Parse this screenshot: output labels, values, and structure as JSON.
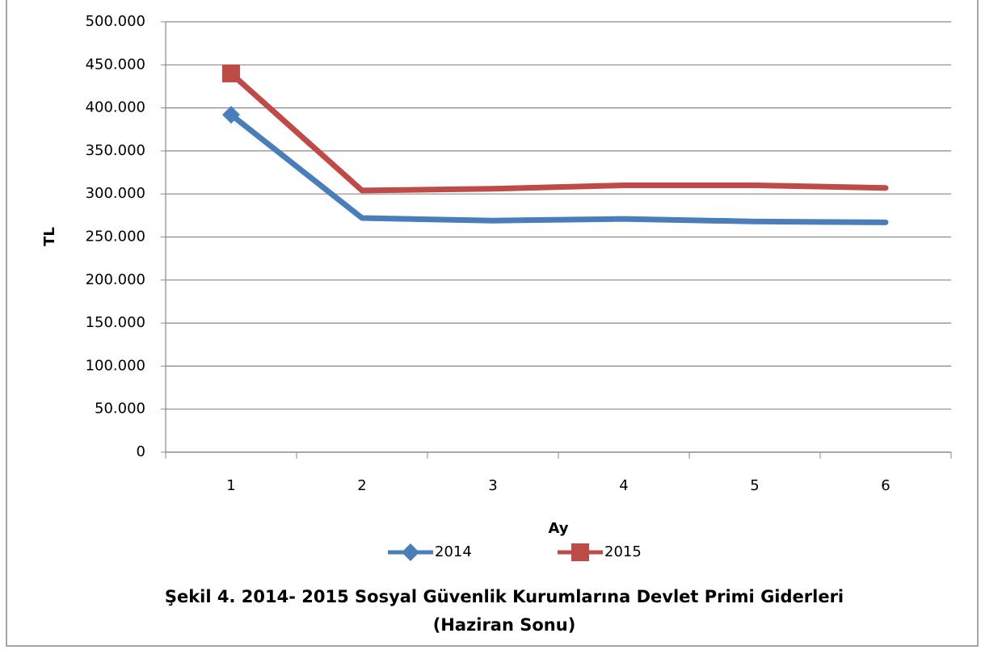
{
  "chart_data": {
    "type": "line",
    "title": "Şekil 4. 2014- 2015 Sosyal Güvenlik Kurumlarına Devlet Primi Giderleri",
    "subtitle": "(Haziran Sonu)",
    "x_label": "Ay",
    "y_label": "TL",
    "categories": [
      "1",
      "2",
      "3",
      "4",
      "5",
      "6"
    ],
    "series": [
      {
        "name": "2014",
        "color": "#4a7ebb",
        "marker": "diamond",
        "values": [
          392000,
          272000,
          269000,
          271000,
          268000,
          267000
        ]
      },
      {
        "name": "2015",
        "color": "#be4b48",
        "marker": "square",
        "values": [
          440000,
          304000,
          306000,
          310000,
          310000,
          307000
        ]
      }
    ],
    "ylim": [
      0,
      500000
    ],
    "yticks": [
      0,
      {
        "value": 50000,
        "label": "50.000"
      },
      {
        "value": 100000,
        "label": "100.000"
      },
      {
        "value": 150000,
        "label": "150.000"
      },
      {
        "value": 200000,
        "label": "200.000"
      },
      {
        "value": 250000,
        "label": "250.000"
      },
      {
        "value": 300000,
        "label": "300.000"
      },
      {
        "value": 350000,
        "label": "350.000"
      },
      {
        "value": 400000,
        "label": "400.000"
      },
      {
        "value": 450000,
        "label": "450.000"
      },
      {
        "value": 500000,
        "label": "500.000"
      }
    ],
    "grid": true,
    "legend": "bottom"
  }
}
